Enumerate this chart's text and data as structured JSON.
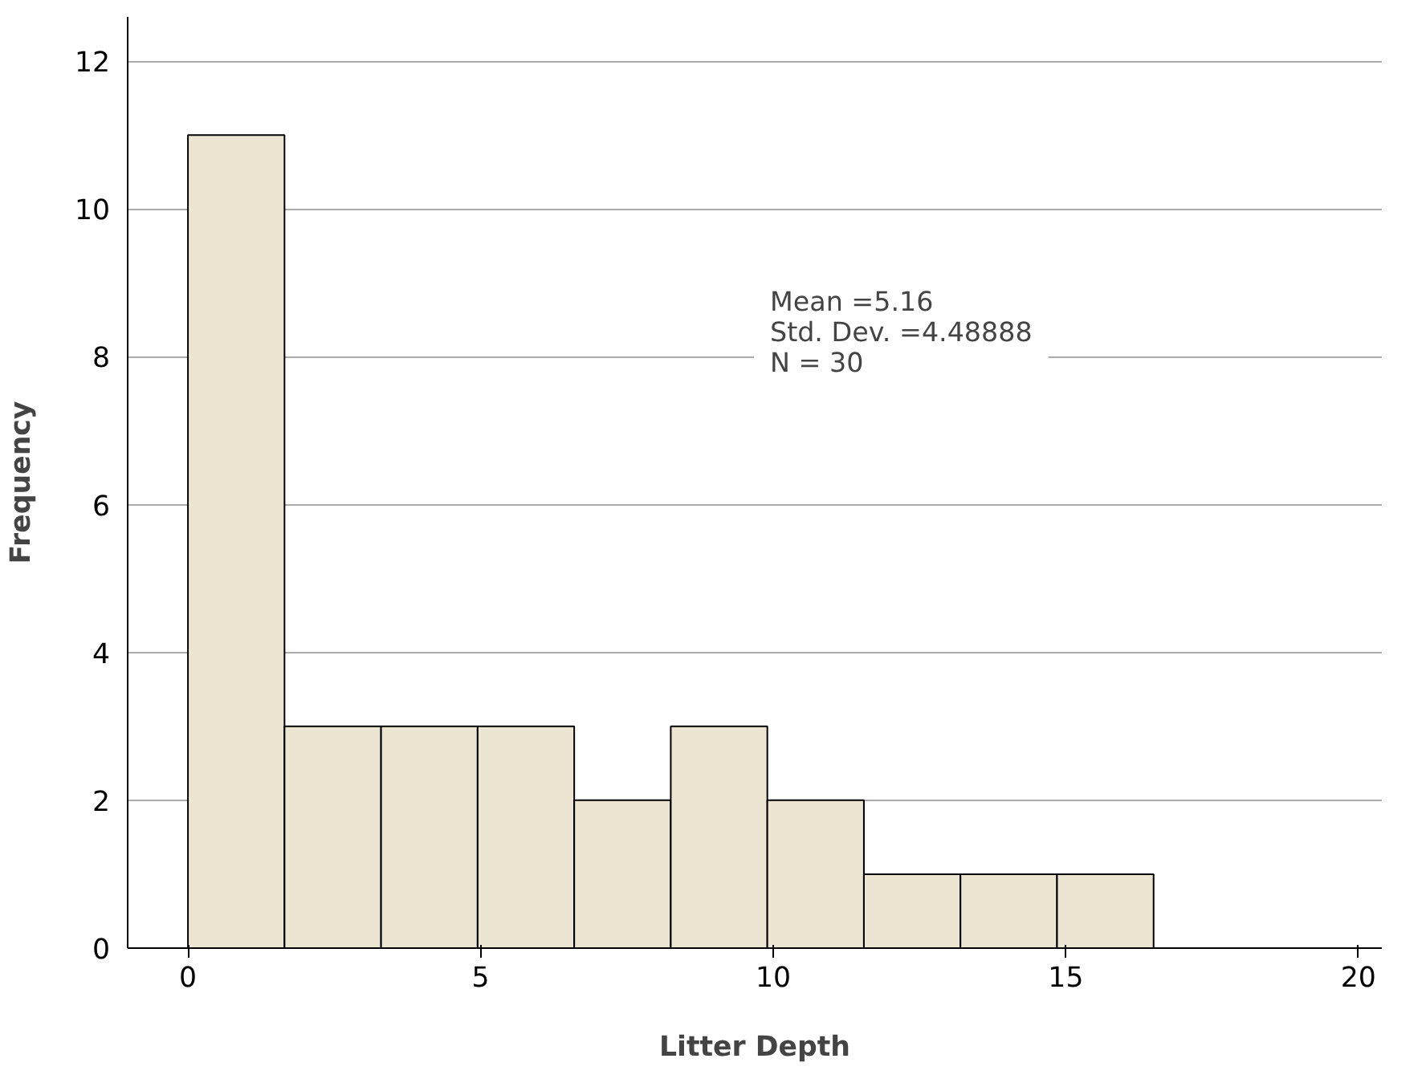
{
  "chart_data": {
    "type": "histogram",
    "xlabel": "Litter Depth",
    "ylabel": "Frequency",
    "bins": [
      0,
      1.65,
      3.3,
      4.95,
      6.6,
      8.25,
      9.9,
      11.55,
      13.2,
      14.85,
      16.5
    ],
    "values": [
      11,
      3,
      3,
      3,
      2,
      3,
      2,
      1,
      1,
      1
    ],
    "color": "#ebe5d2",
    "xlim": [
      -1.03,
      20.4
    ],
    "xticks": [
      0,
      5,
      10,
      15,
      20
    ],
    "ylim": [
      0,
      12.6
    ],
    "yticks": [
      0,
      2,
      4,
      6,
      8,
      10,
      12
    ],
    "grid": "y",
    "annotations": [
      "Mean =5.16",
      "Std. Dev. =4.48888",
      "N = 30"
    ]
  }
}
